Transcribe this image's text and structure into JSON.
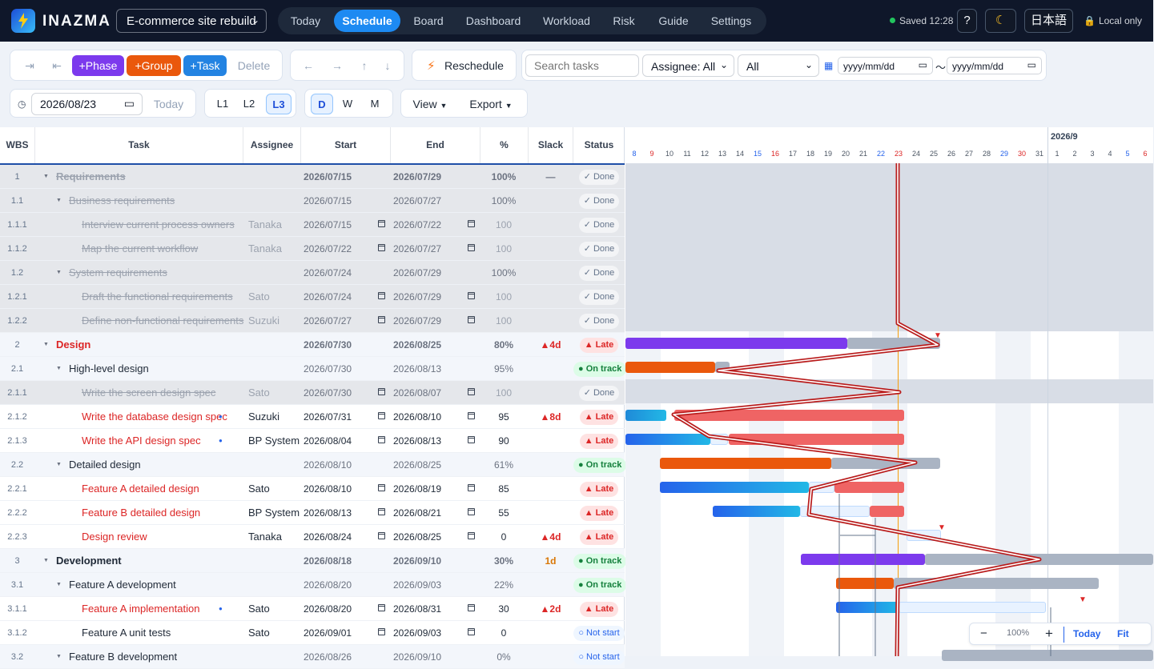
{
  "app": {
    "name": "INAZMA",
    "project": "E-commerce site rebuild",
    "saved": "Saved 12:28",
    "help": "?",
    "moon": "☾",
    "language": "日本語",
    "local": "Local only"
  },
  "nav": [
    "Today",
    "Schedule",
    "Board",
    "Dashboard",
    "Workload",
    "Risk",
    "Guide",
    "Settings"
  ],
  "toolbar": {
    "indent": "⇥",
    "outdent": "⇤",
    "phase": "+Phase",
    "group": "+Group",
    "task": "+Task",
    "delete": "Delete",
    "left": "←",
    "right": "→",
    "up": "↑",
    "down": "↓",
    "reschedule": "Reschedule",
    "search_placeholder": "Search tasks",
    "assignee": "Assignee: All",
    "status": "All",
    "date_from": "yyyy/mm/dd",
    "tilde": "〜",
    "date_to": "yyyy/mm/dd",
    "current_date": "2026/08/23",
    "today": "Today",
    "levels": [
      "L1",
      "L2",
      "L3"
    ],
    "scales": [
      "D",
      "W",
      "M"
    ],
    "view": "View",
    "export": "Export"
  },
  "table": {
    "headers": [
      "WBS",
      "Task",
      "Assignee",
      "Start",
      "End",
      "%",
      "Slack",
      "Status"
    ],
    "rows": [
      {
        "wbs": "1",
        "task": "Requirements",
        "assignee": "",
        "start": "2026/07/15",
        "end": "2026/07/29",
        "pct": "100%",
        "slack": "—",
        "status": "✓ Done",
        "type": "phase",
        "done": true
      },
      {
        "wbs": "1.1",
        "task": "Business requirements",
        "assignee": "",
        "start": "2026/07/15",
        "end": "2026/07/27",
        "pct": "100%",
        "slack": "",
        "status": "✓ Done",
        "type": "group",
        "done": true
      },
      {
        "wbs": "1.1.1",
        "task": "Interview current process owners",
        "assignee": "Tanaka",
        "start": "2026/07/15",
        "end": "2026/07/22",
        "pct": "100",
        "slack": "",
        "status": "✓ Done",
        "type": "task",
        "done": true
      },
      {
        "wbs": "1.1.2",
        "task": "Map the current workflow",
        "assignee": "Tanaka",
        "start": "2026/07/22",
        "end": "2026/07/27",
        "pct": "100",
        "slack": "",
        "status": "✓ Done",
        "type": "task",
        "done": true
      },
      {
        "wbs": "1.2",
        "task": "System requirements",
        "assignee": "",
        "start": "2026/07/24",
        "end": "2026/07/29",
        "pct": "100%",
        "slack": "",
        "status": "✓ Done",
        "type": "group",
        "done": true
      },
      {
        "wbs": "1.2.1",
        "task": "Draft the functional requirements",
        "assignee": "Sato",
        "start": "2026/07/24",
        "end": "2026/07/29",
        "pct": "100",
        "slack": "",
        "status": "✓ Done",
        "type": "task",
        "done": true
      },
      {
        "wbs": "1.2.2",
        "task": "Define non-functional requirements",
        "assignee": "Suzuki",
        "start": "2026/07/27",
        "end": "2026/07/29",
        "pct": "100",
        "slack": "",
        "status": "✓ Done",
        "type": "task",
        "done": true
      },
      {
        "wbs": "2",
        "task": "Design",
        "assignee": "",
        "start": "2026/07/30",
        "end": "2026/08/25",
        "pct": "80%",
        "slack": "▲4d",
        "status": "▲ Late",
        "type": "phase",
        "late": true
      },
      {
        "wbs": "2.1",
        "task": "High-level design",
        "assignee": "",
        "start": "2026/07/30",
        "end": "2026/08/13",
        "pct": "95%",
        "slack": "",
        "status": "● On track",
        "type": "group"
      },
      {
        "wbs": "2.1.1",
        "task": "Write the screen design spec",
        "assignee": "Sato",
        "start": "2026/07/30",
        "end": "2026/08/07",
        "pct": "100",
        "slack": "",
        "status": "✓ Done",
        "type": "task",
        "done": true
      },
      {
        "wbs": "2.1.2",
        "task": "Write the database design spec",
        "assignee": "Suzuki",
        "start": "2026/07/31",
        "end": "2026/08/10",
        "pct": "95",
        "slack": "▲8d",
        "status": "▲ Late",
        "type": "task",
        "late": true,
        "dot": true
      },
      {
        "wbs": "2.1.3",
        "task": "Write the API design spec",
        "assignee": "BP System",
        "start": "2026/08/04",
        "end": "2026/08/13",
        "pct": "90",
        "slack": "",
        "status": "▲ Late",
        "type": "task",
        "late": true,
        "dot": true
      },
      {
        "wbs": "2.2",
        "task": "Detailed design",
        "assignee": "",
        "start": "2026/08/10",
        "end": "2026/08/25",
        "pct": "61%",
        "slack": "",
        "status": "● On track",
        "type": "group"
      },
      {
        "wbs": "2.2.1",
        "task": "Feature A detailed design",
        "assignee": "Sato",
        "start": "2026/08/10",
        "end": "2026/08/19",
        "pct": "85",
        "slack": "",
        "status": "▲ Late",
        "type": "task",
        "late": true
      },
      {
        "wbs": "2.2.2",
        "task": "Feature B detailed design",
        "assignee": "BP System",
        "start": "2026/08/13",
        "end": "2026/08/21",
        "pct": "55",
        "slack": "",
        "status": "▲ Late",
        "type": "task",
        "late": true
      },
      {
        "wbs": "2.2.3",
        "task": "Design review",
        "assignee": "Tanaka",
        "start": "2026/08/24",
        "end": "2026/08/25",
        "pct": "0",
        "slack": "▲4d",
        "status": "▲ Late",
        "type": "task",
        "late": true
      },
      {
        "wbs": "3",
        "task": "Development",
        "assignee": "",
        "start": "2026/08/18",
        "end": "2026/09/10",
        "pct": "30%",
        "slack": "1d",
        "status": "● On track",
        "type": "phase"
      },
      {
        "wbs": "3.1",
        "task": "Feature A development",
        "assignee": "",
        "start": "2026/08/20",
        "end": "2026/09/03",
        "pct": "22%",
        "slack": "",
        "status": "● On track",
        "type": "group"
      },
      {
        "wbs": "3.1.1",
        "task": "Feature A implementation",
        "assignee": "Sato",
        "start": "2026/08/20",
        "end": "2026/08/31",
        "pct": "30",
        "slack": "▲2d",
        "status": "▲ Late",
        "type": "task",
        "late": true,
        "dot": true
      },
      {
        "wbs": "3.1.2",
        "task": "Feature A unit tests",
        "assignee": "Sato",
        "start": "2026/09/01",
        "end": "2026/09/03",
        "pct": "0",
        "slack": "",
        "status": "○ Not start",
        "type": "task"
      },
      {
        "wbs": "3.2",
        "task": "Feature B development",
        "assignee": "",
        "start": "2026/08/26",
        "end": "2026/09/10",
        "pct": "0%",
        "slack": "",
        "status": "○ Not start",
        "type": "group"
      }
    ]
  },
  "timeline": {
    "month": "2026/9",
    "days": [
      "8",
      "9",
      "10",
      "11",
      "12",
      "13",
      "14",
      "15",
      "16",
      "17",
      "18",
      "19",
      "20",
      "21",
      "22",
      "23",
      "24",
      "25",
      "26",
      "27",
      "28",
      "29",
      "30",
      "31",
      "1",
      "2",
      "3",
      "4",
      "5",
      "6"
    ],
    "today_day": "23"
  },
  "zoom": {
    "minus": "−",
    "value": "100%",
    "plus": "+",
    "today": "Today",
    "fit": "Fit"
  },
  "colors": {
    "phase": "#7c3aed",
    "group": "#ea580c",
    "task": "#2383e2",
    "late": "#ef4444",
    "today_line": "#f59e0b"
  }
}
